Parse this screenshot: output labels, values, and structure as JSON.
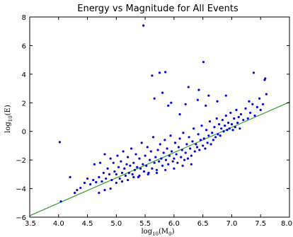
{
  "chart_data": {
    "type": "scatter",
    "title": "Energy vs Magnitude for All Events",
    "xlabel": "log10(M0)",
    "ylabel": "log10(E)",
    "xlim": [
      3.5,
      8.0
    ],
    "ylim": [
      -6,
      8
    ],
    "xticks": [
      3.5,
      4.0,
      4.5,
      5.0,
      5.5,
      6.0,
      6.5,
      7.0,
      7.5,
      8.0
    ],
    "yticks": [
      -6,
      -4,
      -2,
      0,
      2,
      4,
      6,
      8
    ],
    "xtick_labels": [
      "3.5",
      "4.0",
      "4.5",
      "5.0",
      "5.5",
      "6.0",
      "6.5",
      "7.0",
      "7.5",
      "8.0"
    ],
    "ytick_labels": [
      "−6",
      "−4",
      "−2",
      "0",
      "2",
      "4",
      "6",
      "8"
    ],
    "grid": false,
    "colors": {
      "points": "#0000ff",
      "fit_line": "#2ca02c"
    },
    "fit_line": {
      "x": [
        3.5,
        8.0
      ],
      "y": [
        -5.9,
        2.05
      ]
    },
    "series": [
      {
        "points": [
          [
            4.02,
            -0.75
          ],
          [
            4.04,
            -4.9
          ],
          [
            4.2,
            -3.2
          ],
          [
            4.28,
            -4.3
          ],
          [
            4.32,
            -4.1
          ],
          [
            4.38,
            -3.95
          ],
          [
            4.45,
            -3.6
          ],
          [
            4.5,
            -3.3
          ],
          [
            4.55,
            -3.7
          ],
          [
            4.6,
            -3.4
          ],
          [
            4.62,
            -2.3
          ],
          [
            4.65,
            -3.55
          ],
          [
            4.7,
            -3.2
          ],
          [
            4.72,
            -2.2
          ],
          [
            4.75,
            -3.5
          ],
          [
            4.78,
            -2.9
          ],
          [
            4.8,
            -1.6
          ],
          [
            4.82,
            -3.3
          ],
          [
            4.85,
            -2.6
          ],
          [
            4.88,
            -3.0
          ],
          [
            4.9,
            -1.9
          ],
          [
            4.92,
            -3.4
          ],
          [
            4.95,
            -2.2
          ],
          [
            4.97,
            -2.8
          ],
          [
            5.0,
            -3.0
          ],
          [
            5.02,
            -1.7
          ],
          [
            5.04,
            -2.5
          ],
          [
            5.06,
            -3.3
          ],
          [
            5.08,
            -2.1
          ],
          [
            5.1,
            -2.9
          ],
          [
            5.12,
            -1.4
          ],
          [
            5.14,
            -2.6
          ],
          [
            5.16,
            -3.1
          ],
          [
            5.18,
            -2.3
          ],
          [
            5.2,
            -1.8
          ],
          [
            5.22,
            -2.9
          ],
          [
            5.24,
            -2.4
          ],
          [
            5.26,
            -1.2
          ],
          [
            5.28,
            -3.0
          ],
          [
            5.3,
            -2.2
          ],
          [
            5.32,
            -2.7
          ],
          [
            5.34,
            -1.6
          ],
          [
            5.36,
            -2.5
          ],
          [
            5.38,
            -3.2
          ],
          [
            5.4,
            -1.9
          ],
          [
            5.42,
            -2.6
          ],
          [
            5.44,
            -0.8
          ],
          [
            5.46,
            -2.3
          ],
          [
            5.48,
            -2.8
          ],
          [
            5.5,
            -1.7
          ],
          [
            5.52,
            -2.4
          ],
          [
            5.54,
            -1.1
          ],
          [
            5.56,
            -2.9
          ],
          [
            5.58,
            -2.0
          ],
          [
            5.6,
            -1.4
          ],
          [
            5.62,
            -2.6
          ],
          [
            5.64,
            -0.4
          ],
          [
            5.66,
            -2.2
          ],
          [
            5.68,
            -1.8
          ],
          [
            5.7,
            -2.7
          ],
          [
            5.72,
            -1.3
          ],
          [
            5.74,
            -2.1
          ],
          [
            5.76,
            -0.9
          ],
          [
            5.78,
            -1.9
          ],
          [
            5.8,
            -2.4
          ],
          [
            5.82,
            -1.5
          ],
          [
            5.84,
            -0.6
          ],
          [
            5.86,
            -2.0
          ],
          [
            5.88,
            -1.2
          ],
          [
            5.9,
            -2.3
          ],
          [
            5.92,
            -1.7
          ],
          [
            5.94,
            -0.3
          ],
          [
            5.96,
            -1.4
          ],
          [
            5.98,
            -2.1
          ],
          [
            6.0,
            -1.9
          ],
          [
            6.02,
            -0.8
          ],
          [
            6.04,
            -1.6
          ],
          [
            6.06,
            -2.2
          ],
          [
            6.08,
            -1.1
          ],
          [
            6.1,
            -0.5
          ],
          [
            6.12,
            -1.8
          ],
          [
            6.14,
            -1.3
          ],
          [
            6.16,
            -0.1
          ],
          [
            6.18,
            -2.0
          ],
          [
            6.2,
            -1.5
          ],
          [
            6.22,
            -0.9
          ],
          [
            6.24,
            -1.9
          ],
          [
            6.26,
            -0.4
          ],
          [
            6.28,
            -1.2
          ],
          [
            6.3,
            -1.7
          ],
          [
            6.32,
            -0.7
          ],
          [
            6.34,
            0.2
          ],
          [
            6.36,
            -1.4
          ],
          [
            6.38,
            -0.9
          ],
          [
            6.4,
            -1.1
          ],
          [
            6.42,
            -0.2
          ],
          [
            6.44,
            -1.3
          ],
          [
            6.46,
            -0.6
          ],
          [
            6.48,
            0.4
          ],
          [
            6.5,
            -1.0
          ],
          [
            6.52,
            -0.5
          ],
          [
            6.54,
            -1.2
          ],
          [
            6.56,
            0.1
          ],
          [
            6.58,
            -0.8
          ],
          [
            6.6,
            -0.3
          ],
          [
            6.62,
            0.7
          ],
          [
            6.64,
            -0.9
          ],
          [
            6.66,
            -0.1
          ],
          [
            6.68,
            -0.6
          ],
          [
            6.7,
            0.3
          ],
          [
            6.72,
            -0.4
          ],
          [
            6.74,
            0.9
          ],
          [
            6.76,
            -0.2
          ],
          [
            6.78,
            0.5
          ],
          [
            6.8,
            -0.3
          ],
          [
            6.82,
            0.2
          ],
          [
            6.84,
            0.8
          ],
          [
            6.86,
            0.0
          ],
          [
            6.88,
            0.4
          ],
          [
            6.9,
            1.1
          ],
          [
            6.92,
            0.1
          ],
          [
            6.94,
            0.6
          ],
          [
            6.96,
            0.2
          ],
          [
            6.98,
            1.3
          ],
          [
            7.0,
            0.5
          ],
          [
            7.02,
            0.1
          ],
          [
            7.04,
            0.9
          ],
          [
            7.06,
            0.3
          ],
          [
            7.08,
            1.5
          ],
          [
            7.1,
            0.6
          ],
          [
            7.12,
            1.0
          ],
          [
            7.14,
            0.2
          ],
          [
            7.16,
            1.2
          ],
          [
            7.2,
            0.8
          ],
          [
            7.24,
            1.6
          ],
          [
            7.28,
            0.9
          ],
          [
            7.32,
            1.3
          ],
          [
            7.36,
            1.9
          ],
          [
            7.4,
            1.1
          ],
          [
            7.44,
            1.7
          ],
          [
            7.48,
            2.3
          ],
          [
            7.5,
            1.5
          ],
          [
            7.54,
            1.9
          ],
          [
            7.6,
            2.6
          ],
          [
            5.47,
            7.4
          ],
          [
            6.51,
            4.85
          ],
          [
            5.62,
            3.9
          ],
          [
            5.75,
            4.1
          ],
          [
            5.85,
            4.15
          ],
          [
            7.38,
            4.1
          ],
          [
            7.58,
            3.7
          ],
          [
            7.57,
            3.6
          ],
          [
            6.25,
            3.1
          ],
          [
            6.43,
            2.9
          ],
          [
            6.41,
            2.2
          ],
          [
            6.6,
            2.5
          ],
          [
            5.66,
            2.3
          ],
          [
            5.8,
            2.7
          ],
          [
            5.9,
            1.8
          ],
          [
            5.95,
            2.0
          ],
          [
            6.1,
            1.2
          ],
          [
            6.2,
            1.9
          ],
          [
            6.55,
            1.8
          ],
          [
            6.75,
            2.1
          ],
          [
            6.9,
            2.5
          ],
          [
            7.3,
            2.1
          ],
          [
            5.0,
            -3.6
          ],
          [
            5.1,
            -3.5
          ],
          [
            5.2,
            -3.4
          ],
          [
            5.3,
            -3.2
          ],
          [
            5.4,
            -3.1
          ],
          [
            5.55,
            -3.0
          ],
          [
            5.7,
            -2.9
          ],
          [
            5.85,
            -2.7
          ],
          [
            6.0,
            -2.6
          ],
          [
            6.15,
            -2.4
          ],
          [
            6.3,
            -2.3
          ],
          [
            4.9,
            -4.0
          ],
          [
            4.8,
            -4.1
          ],
          [
            4.7,
            -4.3
          ]
        ]
      }
    ]
  }
}
